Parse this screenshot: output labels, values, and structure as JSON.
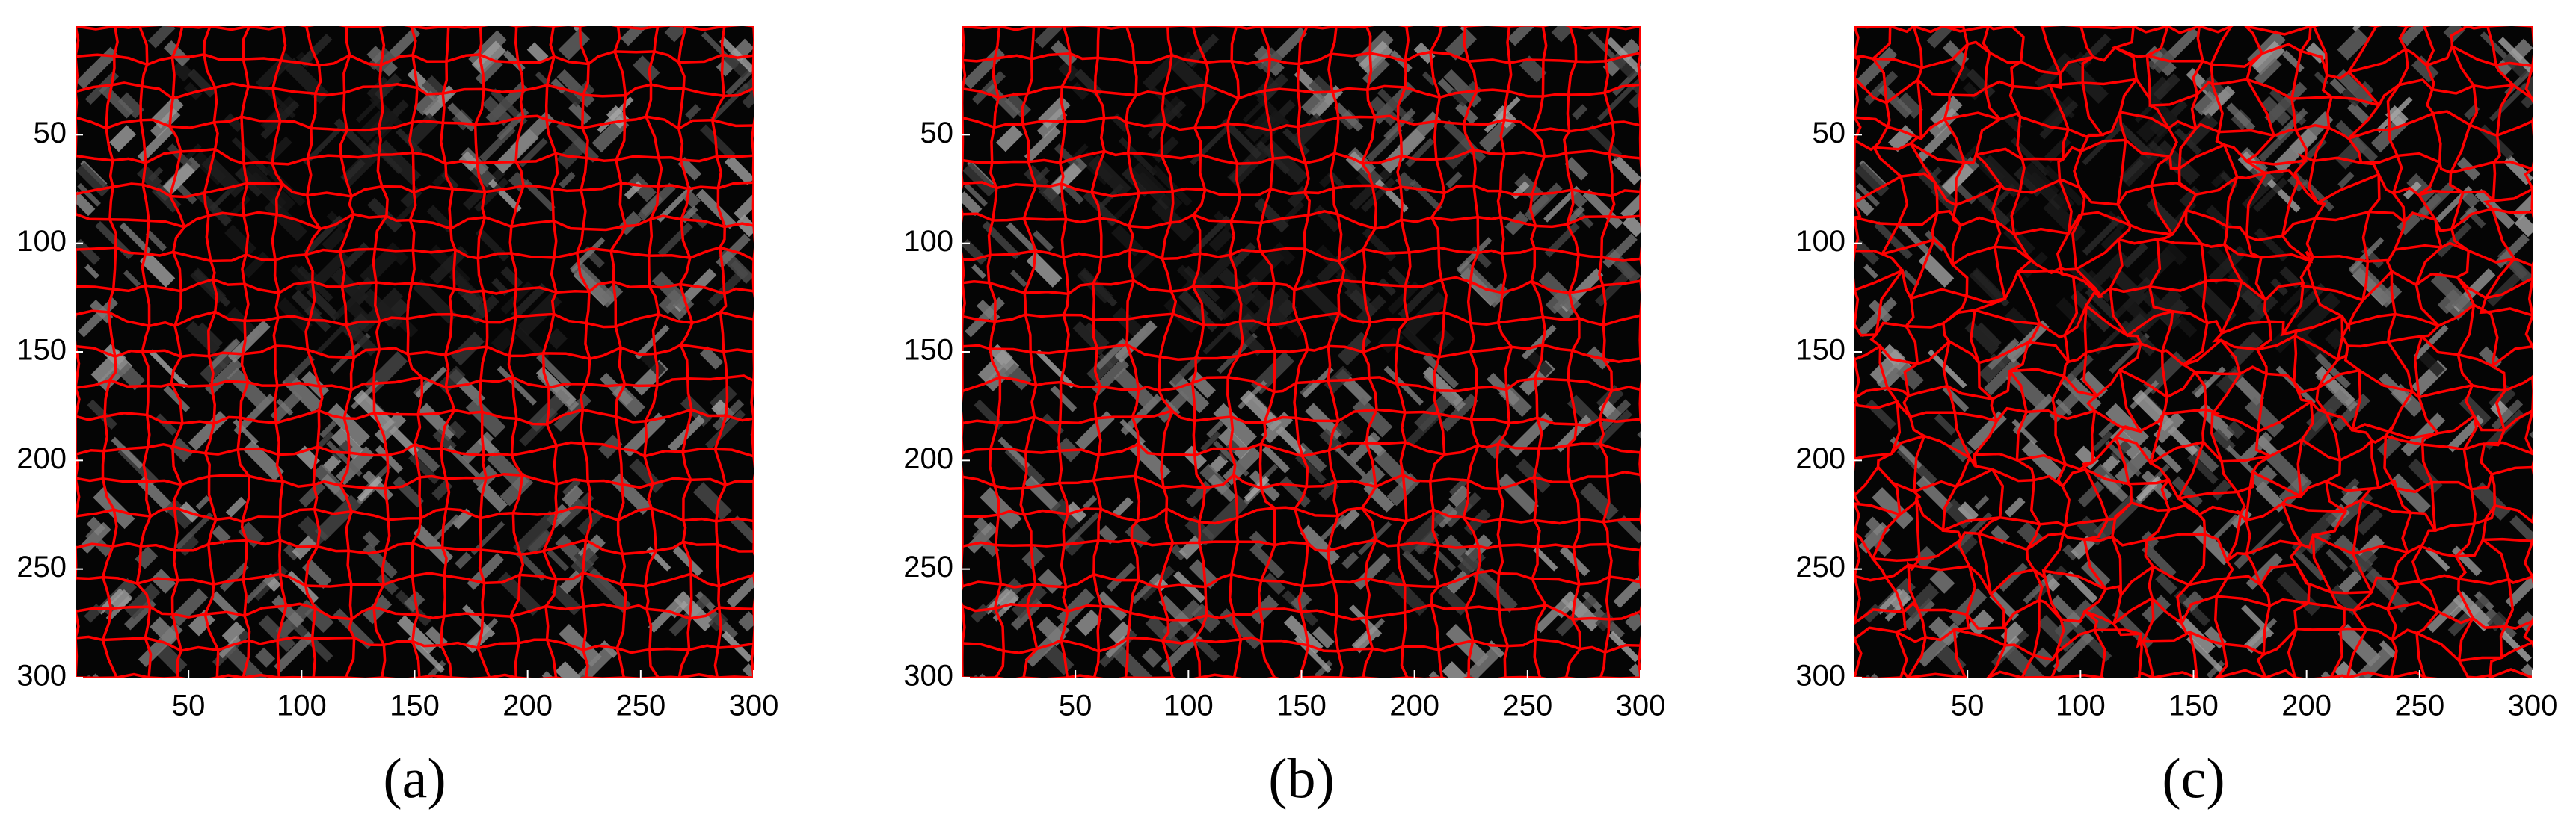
{
  "chart_data": [
    {
      "type": "image",
      "label": "(a)",
      "xlim": [
        0,
        300
      ],
      "ylim": [
        0,
        300
      ],
      "y_reversed": true,
      "xticks": [
        50,
        100,
        150,
        200,
        250,
        300
      ],
      "yticks": [
        50,
        100,
        150,
        200,
        250,
        300
      ]
    },
    {
      "type": "image",
      "label": "(b)",
      "xlim": [
        0,
        300
      ],
      "ylim": [
        0,
        300
      ],
      "y_reversed": true,
      "xticks": [
        50,
        100,
        150,
        200,
        250,
        300
      ],
      "yticks": [
        50,
        100,
        150,
        200,
        250,
        300
      ]
    },
    {
      "type": "image",
      "label": "(c)",
      "xlim": [
        0,
        300
      ],
      "ylim": [
        0,
        300
      ],
      "y_reversed": true,
      "xticks": [
        50,
        100,
        150,
        200,
        250,
        300
      ],
      "yticks": [
        50,
        100,
        150,
        200,
        250,
        300
      ]
    }
  ]
}
